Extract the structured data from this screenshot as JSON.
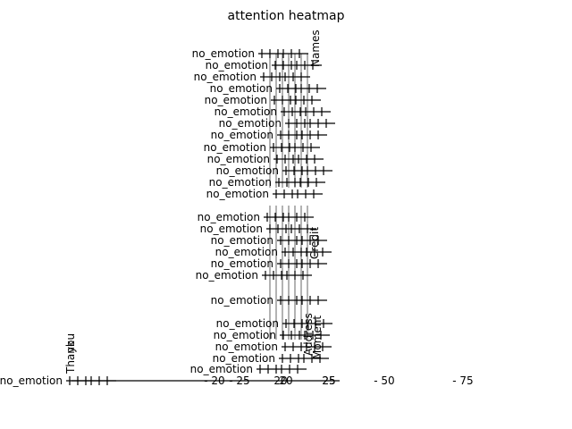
{
  "chart_data": {
    "type": "heatmap",
    "title": "attention heatmap",
    "row_label": "no_emotion",
    "row_count": 24,
    "vertical_labels": [
      "Thank",
      "you",
      "Names",
      "Credit",
      "Address",
      "Moment"
    ],
    "x_tick_labels": [
      "20",
      "25",
      "20",
      "25",
      "- 20",
      "- 25",
      "- 50",
      "- 75"
    ],
    "grid": false,
    "colorbar": false
  }
}
